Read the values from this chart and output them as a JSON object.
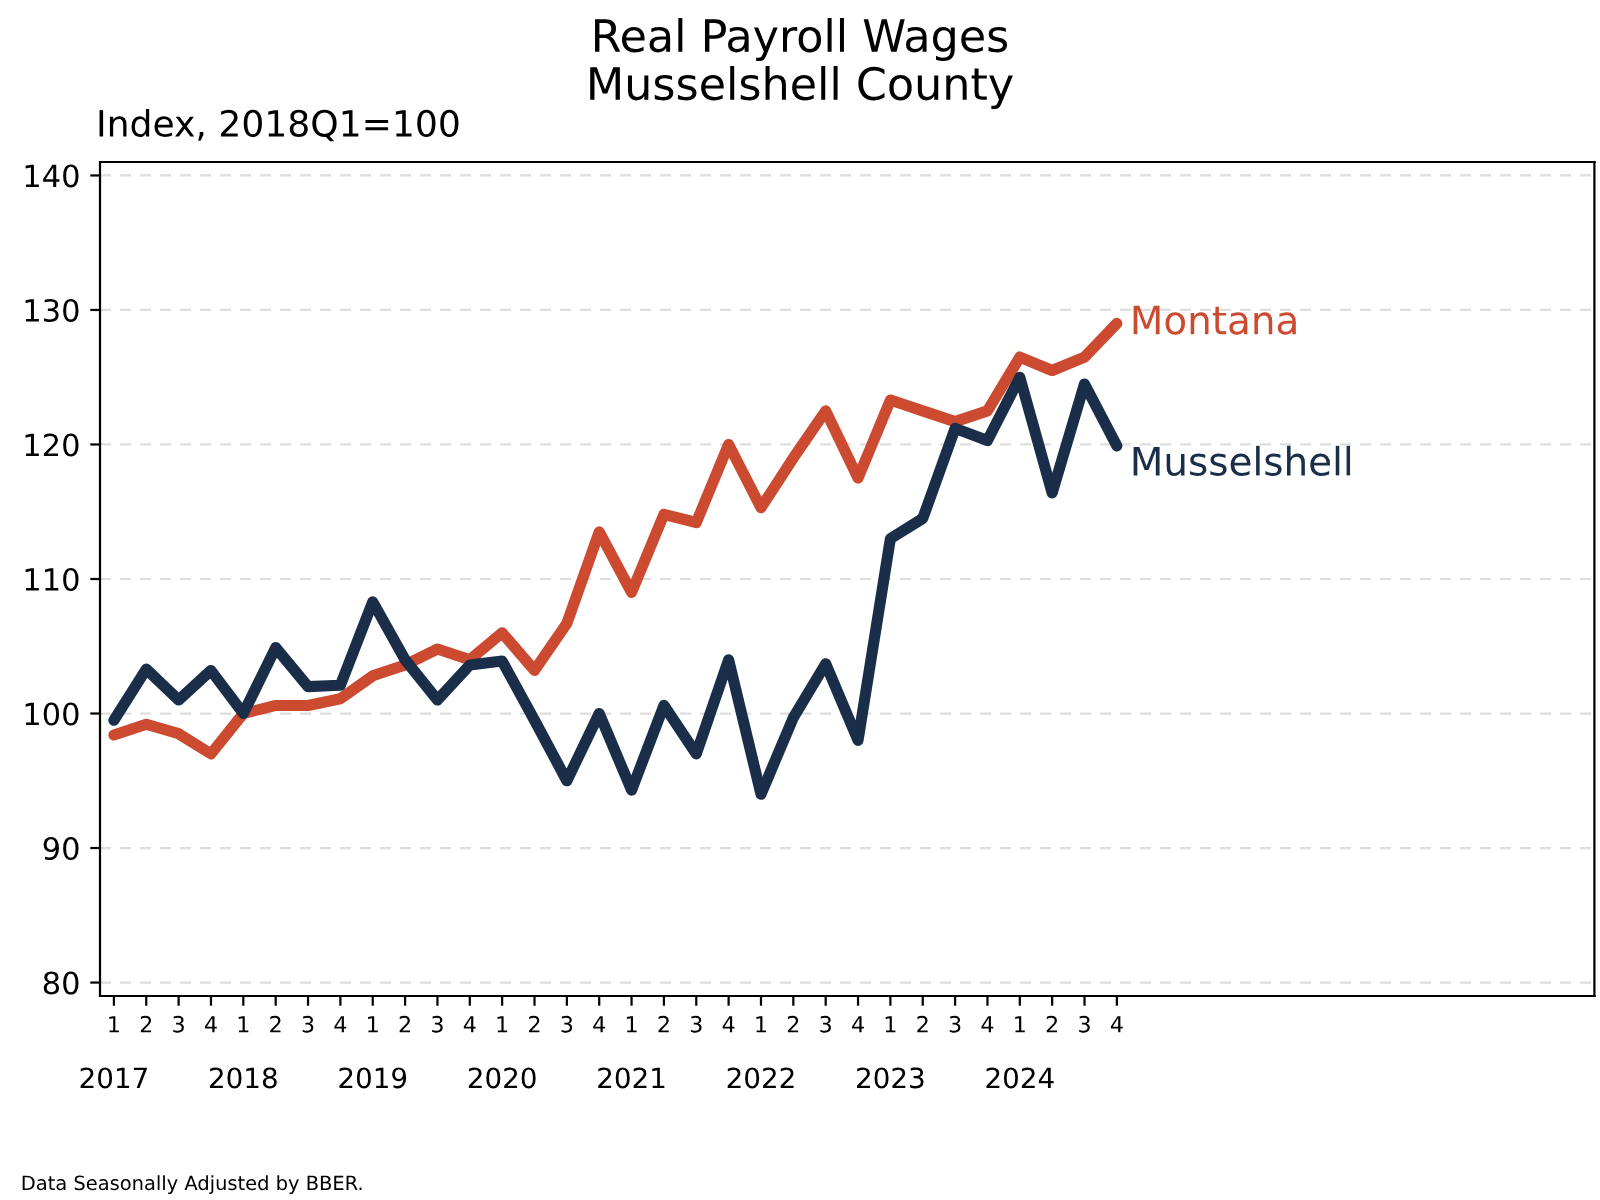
{
  "chart_data": {
    "type": "line",
    "title": "Real Payroll Wages",
    "subtitle": "Musselshell County",
    "ylabel": "Index, 2018Q1=100",
    "categories": [
      "1",
      "2",
      "3",
      "4",
      "1",
      "2",
      "3",
      "4",
      "1",
      "2",
      "3",
      "4",
      "1",
      "2",
      "3",
      "4",
      "1",
      "2",
      "3",
      "4",
      "1",
      "2",
      "3",
      "4",
      "1",
      "2",
      "3",
      "4",
      "1",
      "2",
      "3",
      "4"
    ],
    "series": [
      {
        "name": "Montana",
        "color": "#cc4a30",
        "values": [
          98.4,
          99.2,
          98.5,
          97,
          100,
          100.6,
          100.6,
          101.1,
          102.8,
          103.6,
          104.8,
          104,
          106,
          103.2,
          106.7,
          113.5,
          109,
          114.8,
          114.2,
          120,
          115.3,
          119,
          122.5,
          117.5,
          123.3,
          122.5,
          121.7,
          122.5,
          126.5,
          125.5,
          126.5,
          129
        ]
      },
      {
        "name": "Musselshell",
        "color": "#1a2e4a",
        "values": [
          99.5,
          103.3,
          101,
          103.2,
          100,
          104.9,
          102,
          102.1,
          108.3,
          104,
          101,
          103.6,
          103.9,
          99.5,
          95,
          100,
          94.3,
          100.6,
          97,
          104,
          94,
          99.7,
          103.7,
          98,
          113,
          114.5,
          121.2,
          120.3,
          125,
          116.4,
          124.5,
          119.9
        ]
      }
    ],
    "ylim": [
      79,
      141
    ],
    "yticks": [
      80,
      90,
      100,
      110,
      120,
      130,
      140
    ],
    "grid": "y",
    "line_style": "solid",
    "marker": "none",
    "legend": false,
    "annotations": [
      "2017",
      "2018",
      "2019",
      "2020",
      "2021",
      "2022",
      "2023",
      "2024",
      "Data Seasonally Adjusted by BBER."
    ]
  }
}
